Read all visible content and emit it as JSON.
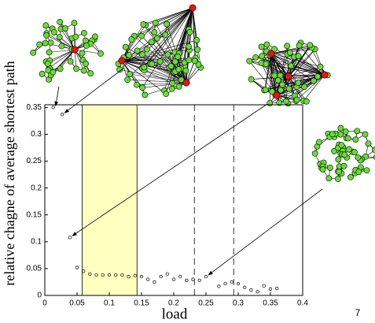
{
  "chart_data": {
    "type": "scatter",
    "xlabel": "load",
    "ylabel": "relative chagne of average shortest path",
    "x": [
      0.013,
      0.027,
      0.039,
      0.05,
      0.06,
      0.07,
      0.08,
      0.09,
      0.1,
      0.11,
      0.12,
      0.13,
      0.14,
      0.15,
      0.16,
      0.17,
      0.18,
      0.19,
      0.2,
      0.21,
      0.22,
      0.23,
      0.24,
      0.25,
      0.27,
      0.28,
      0.29,
      0.3,
      0.31,
      0.32,
      0.33,
      0.34,
      0.35,
      0.36
    ],
    "values": [
      0.35,
      0.337,
      0.108,
      0.052,
      0.045,
      0.04,
      0.038,
      0.038,
      0.038,
      0.038,
      0.038,
      0.035,
      0.037,
      0.035,
      0.03,
      0.025,
      0.035,
      0.04,
      0.03,
      0.035,
      0.028,
      0.03,
      0.028,
      0.035,
      0.017,
      0.022,
      0.025,
      0.022,
      0.015,
      0.01,
      0.007,
      0.018,
      0.012,
      0.013
    ],
    "color": "#000000",
    "shaded": [
      0.058,
      0.143
    ],
    "shade_color": "#ffffc0",
    "vlines": [
      0.232,
      0.293
    ],
    "xlim": [
      0,
      0.4
    ],
    "xticks": [
      0,
      0.05,
      0.1,
      0.15,
      0.2,
      0.25,
      0.3,
      0.35,
      0.4
    ],
    "ylim": [
      0,
      0.355
    ],
    "yticks": [
      0,
      0.05,
      0.1,
      0.15,
      0.2,
      0.25,
      0.3,
      0.35
    ]
  },
  "page_number": "7"
}
